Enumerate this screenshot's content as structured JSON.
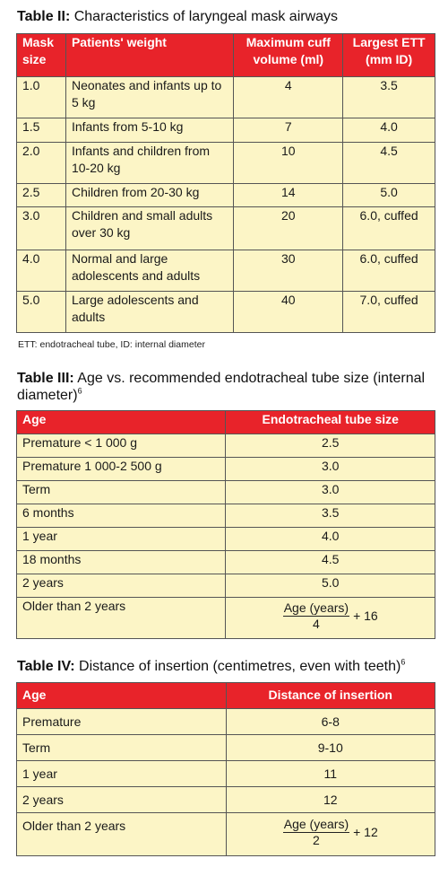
{
  "table2": {
    "title_bold": "Table II:",
    "title_rest": " Characteristics of laryngeal mask airways",
    "headers": [
      "Mask size",
      "Patients' weight",
      "Maximum cuff volume (ml)",
      "Largest ETT (mm ID)"
    ],
    "rows": [
      [
        "1.0",
        "Neonates and infants up to 5 kg",
        "4",
        "3.5"
      ],
      [
        "1.5",
        "Infants from 5-10 kg",
        "7",
        "4.0"
      ],
      [
        "2.0",
        "Infants and children from 10-20 kg",
        "10",
        "4.5"
      ],
      [
        "2.5",
        "Children from 20-30 kg",
        "14",
        "5.0"
      ],
      [
        "3.0",
        "Children and small adults over 30 kg",
        "20",
        "6.0, cuffed"
      ],
      [
        "4.0",
        "Normal and large adolescents and adults",
        "30",
        "6.0, cuffed"
      ],
      [
        "5.0",
        "Large adolescents and adults",
        "40",
        "7.0, cuffed"
      ]
    ],
    "footnote": "ETT: endotracheal tube, ID: internal diameter"
  },
  "table3": {
    "title_bold": "Table III:",
    "title_rest": " Age vs. recommended endotracheal tube size (internal diameter)",
    "title_sup": "6",
    "headers": [
      "Age",
      "Endotracheal tube size"
    ],
    "rows": [
      [
        "Premature < 1 000 g",
        "2.5"
      ],
      [
        "Premature 1 000-2 500 g",
        "3.0"
      ],
      [
        "Term",
        "3.0"
      ],
      [
        "6 months",
        "3.5"
      ],
      [
        "1 year",
        "4.0"
      ],
      [
        "18 months",
        "4.5"
      ],
      [
        "2 years",
        "5.0"
      ]
    ],
    "last_row_label": "Older than 2 years",
    "formula": {
      "numerator": "Age (years)",
      "denominator": "4",
      "suffix": "+ 16"
    }
  },
  "table4": {
    "title_bold": "Table IV:",
    "title_rest": " Distance of insertion (centimetres, even with teeth)",
    "title_sup": "6",
    "headers": [
      "Age",
      "Distance of insertion"
    ],
    "rows": [
      [
        "Premature",
        "6-8"
      ],
      [
        "Term",
        "9-10"
      ],
      [
        "1 year",
        "11"
      ],
      [
        "2 years",
        "12"
      ]
    ],
    "last_row_label": "Older than 2 years",
    "formula": {
      "numerator": "Age (years)",
      "denominator": "2",
      "suffix": "+ 12"
    }
  }
}
